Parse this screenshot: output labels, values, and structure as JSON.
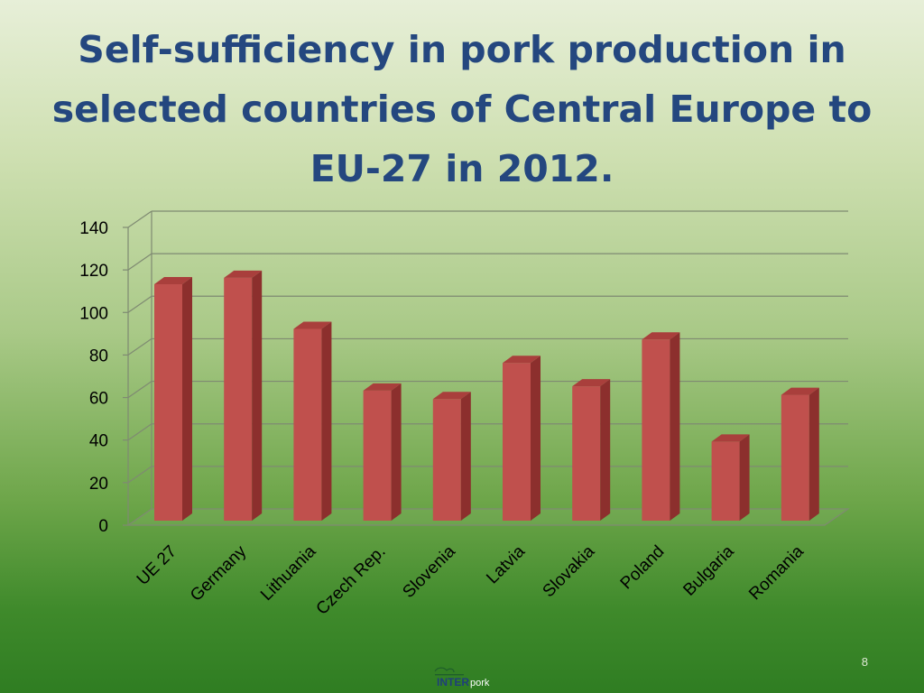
{
  "slide": {
    "title": "Self-sufficiency in pork production in selected countries of Central Europe to EU-27 in 2012.",
    "page_number": "8",
    "logo": {
      "text_main": "INTER",
      "text_sub": "pork",
      "icon": "pig-logo-icon"
    }
  },
  "colors": {
    "title": "#24477f",
    "bar_front": "#c0504d",
    "bar_side": "#8c2f2d",
    "bar_top": "#a93f3c",
    "gridline": "#7f8a72"
  },
  "chart_data": {
    "type": "bar",
    "categories": [
      "UE 27",
      "Germany",
      "Lithuania",
      "Czech Rep.",
      "Slovenia",
      "Latvia",
      "Slovakia",
      "Poland",
      "Bulgaria",
      "Romania"
    ],
    "values": [
      112,
      115,
      91,
      62,
      58,
      75,
      64,
      86,
      38,
      60
    ],
    "ylim": [
      0,
      140
    ],
    "yticks": [
      0,
      20,
      40,
      60,
      80,
      100,
      120,
      140
    ],
    "grid": true,
    "legend": false,
    "style": "3d-clustered-column",
    "xlabel": "",
    "ylabel": ""
  }
}
